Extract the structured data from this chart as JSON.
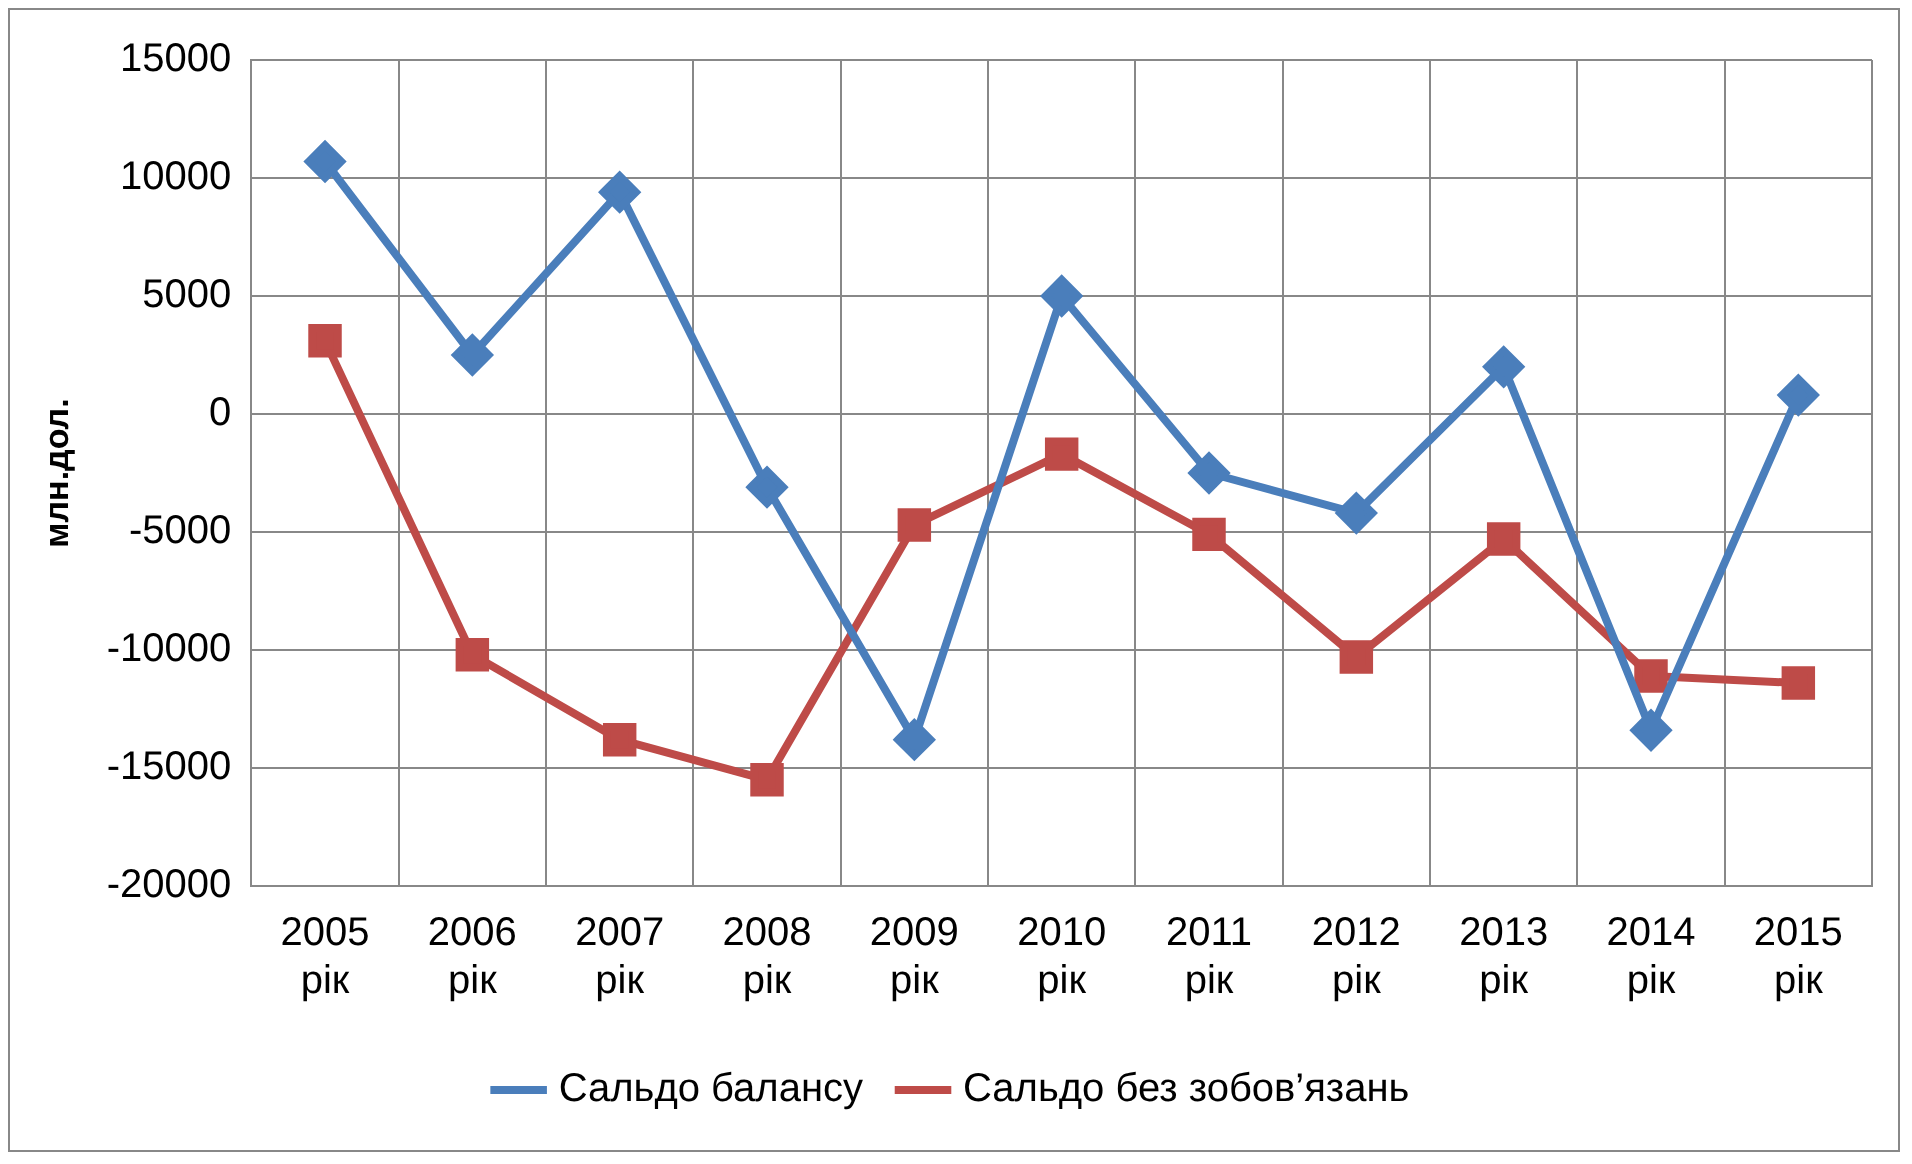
{
  "chart_data": {
    "type": "line",
    "ylabel": "млн.дол.",
    "categories": [
      "2005 рік",
      "2006 рік",
      "2007 рік",
      "2008 рік",
      "2009 рік",
      "2010 рік",
      "2011 рік",
      "2012 рік",
      "2013 рік",
      "2014 рік",
      "2015 рік"
    ],
    "series": [
      {
        "name": "Сальдо балансу",
        "color": "#4a7ebb",
        "marker": "diamond",
        "values": [
          10700,
          2500,
          9400,
          -3100,
          -13800,
          5000,
          -2500,
          -4200,
          2000,
          -13400,
          800
        ]
      },
      {
        "name": "Сальдо без зобов’язань",
        "color": "#be4b48",
        "marker": "square",
        "values": [
          3100,
          -10200,
          -13800,
          -15500,
          -4700,
          -1700,
          -5100,
          -10300,
          -5300,
          -11100,
          -11400
        ]
      }
    ],
    "ylim": [
      -20000,
      15000
    ],
    "yticks": [
      -20000,
      -15000,
      -10000,
      -5000,
      0,
      5000,
      10000,
      15000
    ],
    "grid": true,
    "legend": "bottom",
    "line_style": "solid"
  }
}
